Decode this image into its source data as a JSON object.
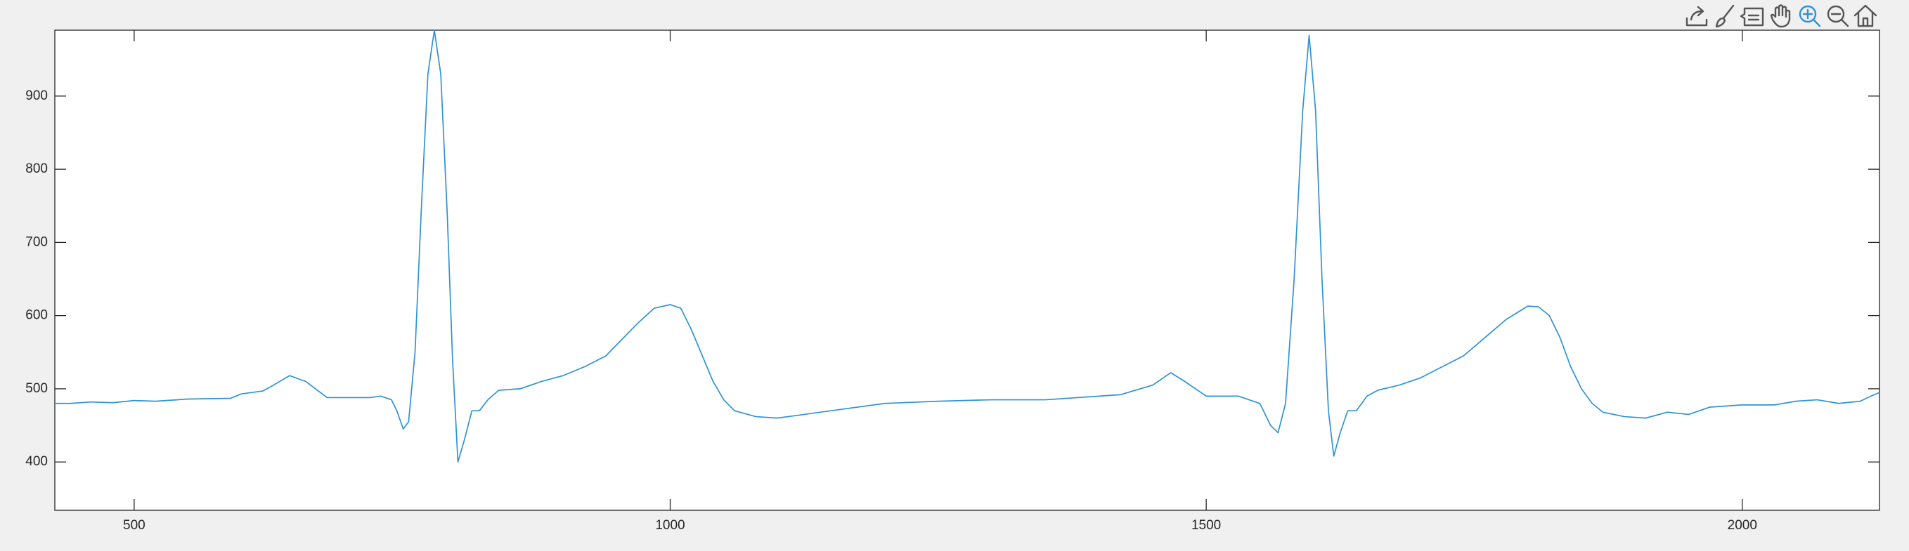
{
  "chart_data": {
    "type": "line",
    "x": [
      426,
      440,
      460,
      480,
      500,
      520,
      550,
      590,
      600,
      620,
      630,
      645,
      660,
      680,
      700,
      720,
      730,
      740,
      745,
      751,
      756,
      762,
      768,
      774,
      780,
      786,
      792,
      797,
      802,
      808,
      815,
      822,
      830,
      840,
      860,
      880,
      900,
      920,
      940,
      950,
      960,
      970,
      985,
      1000,
      1010,
      1020,
      1030,
      1040,
      1050,
      1060,
      1080,
      1100,
      1150,
      1200,
      1250,
      1300,
      1350,
      1400,
      1420,
      1450,
      1467,
      1480,
      1500,
      1530,
      1550,
      1560,
      1567,
      1574,
      1582,
      1590,
      1596,
      1602,
      1608,
      1614,
      1619,
      1625,
      1632,
      1640,
      1650,
      1660,
      1680,
      1700,
      1720,
      1740,
      1760,
      1780,
      1800,
      1810,
      1820,
      1830,
      1840,
      1850,
      1860,
      1870,
      1890,
      1910,
      1930,
      1950,
      1970,
      2000,
      2030,
      2050,
      2070,
      2090,
      2110,
      2120,
      2128
    ],
    "values": [
      480,
      480,
      482,
      481,
      484,
      483,
      486,
      487,
      493,
      497,
      505,
      518,
      510,
      488,
      488,
      488,
      490,
      485,
      470,
      445,
      455,
      550,
      750,
      930,
      990,
      930,
      740,
      540,
      400,
      430,
      470,
      470,
      485,
      498,
      500,
      510,
      518,
      530,
      545,
      560,
      575,
      590,
      610,
      615,
      610,
      580,
      545,
      510,
      485,
      470,
      462,
      460,
      470,
      480,
      483,
      485,
      485,
      490,
      492,
      505,
      522,
      510,
      490,
      490,
      480,
      450,
      440,
      480,
      650,
      880,
      983,
      880,
      650,
      470,
      408,
      440,
      470,
      470,
      490,
      498,
      505,
      515,
      530,
      545,
      570,
      595,
      613,
      612,
      600,
      570,
      530,
      500,
      480,
      468,
      462,
      460,
      468,
      465,
      475,
      478,
      478,
      483,
      485,
      480,
      483,
      490,
      495
    ],
    "color": "#2f93d3",
    "xlim": [
      426,
      2128
    ],
    "ylim": [
      334,
      990
    ],
    "xticks": [
      500,
      1000,
      1500,
      2000
    ],
    "yticks": [
      400,
      500,
      600,
      700,
      800,
      900
    ],
    "grid": false
  }
}
